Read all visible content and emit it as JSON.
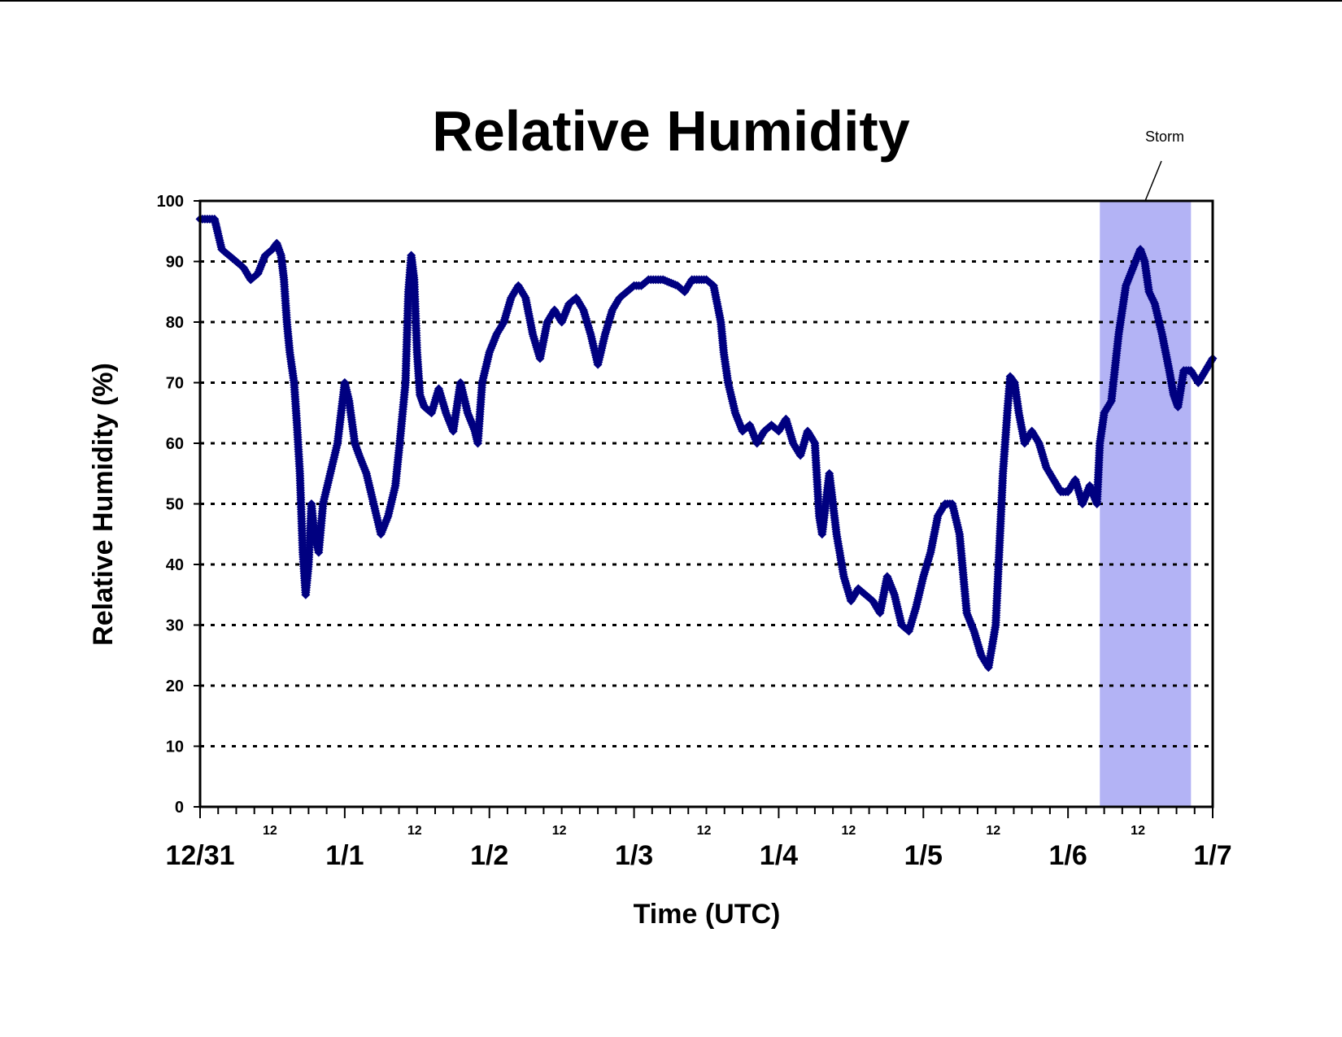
{
  "chart_data": {
    "type": "scatter",
    "title": "Relative Humidity",
    "xlabel": "Time (UTC)",
    "ylabel": "Relative Humidity (%)",
    "ylim": [
      0,
      100
    ],
    "yticks": [
      0,
      10,
      20,
      30,
      40,
      50,
      60,
      70,
      80,
      90,
      100
    ],
    "xlim_days": [
      0,
      7
    ],
    "x_major_ticks": [
      {
        "day": 0,
        "label": "12/31"
      },
      {
        "day": 1,
        "label": "1/1"
      },
      {
        "day": 2,
        "label": "1/2"
      },
      {
        "day": 3,
        "label": "1/3"
      },
      {
        "day": 4,
        "label": "1/4"
      },
      {
        "day": 5,
        "label": "1/5"
      },
      {
        "day": 6,
        "label": "1/6"
      },
      {
        "day": 7,
        "label": "1/7"
      }
    ],
    "x_minor_tick_label": "12",
    "grid": "horizontal-dotted",
    "series_color": "#000080",
    "annotation": {
      "label": "Storm",
      "x_start_day": 6.22,
      "x_end_day": 6.85,
      "color": "#b3b3f5"
    },
    "series": [
      {
        "points": [
          [
            0.0,
            97
          ],
          [
            0.05,
            97
          ],
          [
            0.1,
            97
          ],
          [
            0.12,
            95
          ],
          [
            0.15,
            92
          ],
          [
            0.2,
            91
          ],
          [
            0.25,
            90
          ],
          [
            0.3,
            89
          ],
          [
            0.35,
            87
          ],
          [
            0.4,
            88
          ],
          [
            0.45,
            91
          ],
          [
            0.5,
            92
          ],
          [
            0.53,
            93
          ],
          [
            0.56,
            91
          ],
          [
            0.58,
            87
          ],
          [
            0.6,
            80
          ],
          [
            0.62,
            75
          ],
          [
            0.65,
            70
          ],
          [
            0.67,
            63
          ],
          [
            0.69,
            55
          ],
          [
            0.71,
            42
          ],
          [
            0.73,
            35
          ],
          [
            0.75,
            40
          ],
          [
            0.77,
            50
          ],
          [
            0.79,
            45
          ],
          [
            0.82,
            42
          ],
          [
            0.85,
            50
          ],
          [
            0.9,
            55
          ],
          [
            0.95,
            60
          ],
          [
            1.0,
            70
          ],
          [
            1.03,
            67
          ],
          [
            1.07,
            60
          ],
          [
            1.1,
            58
          ],
          [
            1.15,
            55
          ],
          [
            1.2,
            50
          ],
          [
            1.25,
            45
          ],
          [
            1.3,
            48
          ],
          [
            1.35,
            53
          ],
          [
            1.38,
            60
          ],
          [
            1.42,
            70
          ],
          [
            1.44,
            85
          ],
          [
            1.46,
            91
          ],
          [
            1.48,
            87
          ],
          [
            1.5,
            75
          ],
          [
            1.52,
            68
          ],
          [
            1.55,
            66
          ],
          [
            1.6,
            65
          ],
          [
            1.65,
            69
          ],
          [
            1.7,
            65
          ],
          [
            1.75,
            62
          ],
          [
            1.8,
            70
          ],
          [
            1.85,
            65
          ],
          [
            1.9,
            62
          ],
          [
            1.92,
            60
          ],
          [
            1.95,
            70
          ],
          [
            2.0,
            75
          ],
          [
            2.05,
            78
          ],
          [
            2.1,
            80
          ],
          [
            2.15,
            84
          ],
          [
            2.2,
            86
          ],
          [
            2.25,
            84
          ],
          [
            2.3,
            78
          ],
          [
            2.35,
            74
          ],
          [
            2.4,
            80
          ],
          [
            2.45,
            82
          ],
          [
            2.5,
            80
          ],
          [
            2.55,
            83
          ],
          [
            2.6,
            84
          ],
          [
            2.65,
            82
          ],
          [
            2.7,
            78
          ],
          [
            2.75,
            73
          ],
          [
            2.8,
            78
          ],
          [
            2.85,
            82
          ],
          [
            2.9,
            84
          ],
          [
            2.95,
            85
          ],
          [
            3.0,
            86
          ],
          [
            3.05,
            86
          ],
          [
            3.1,
            87
          ],
          [
            3.2,
            87
          ],
          [
            3.3,
            86
          ],
          [
            3.35,
            85
          ],
          [
            3.4,
            87
          ],
          [
            3.5,
            87
          ],
          [
            3.55,
            86
          ],
          [
            3.6,
            80
          ],
          [
            3.62,
            75
          ],
          [
            3.65,
            70
          ],
          [
            3.7,
            65
          ],
          [
            3.75,
            62
          ],
          [
            3.8,
            63
          ],
          [
            3.85,
            60
          ],
          [
            3.9,
            62
          ],
          [
            3.95,
            63
          ],
          [
            4.0,
            62
          ],
          [
            4.05,
            64
          ],
          [
            4.1,
            60
          ],
          [
            4.15,
            58
          ],
          [
            4.2,
            62
          ],
          [
            4.25,
            60
          ],
          [
            4.28,
            48
          ],
          [
            4.3,
            45
          ],
          [
            4.35,
            55
          ],
          [
            4.4,
            45
          ],
          [
            4.45,
            38
          ],
          [
            4.5,
            34
          ],
          [
            4.55,
            36
          ],
          [
            4.6,
            35
          ],
          [
            4.65,
            34
          ],
          [
            4.7,
            32
          ],
          [
            4.75,
            38
          ],
          [
            4.8,
            35
          ],
          [
            4.85,
            30
          ],
          [
            4.9,
            29
          ],
          [
            4.95,
            33
          ],
          [
            5.0,
            38
          ],
          [
            5.05,
            42
          ],
          [
            5.1,
            48
          ],
          [
            5.15,
            50
          ],
          [
            5.2,
            50
          ],
          [
            5.25,
            45
          ],
          [
            5.3,
            32
          ],
          [
            5.35,
            29
          ],
          [
            5.4,
            25
          ],
          [
            5.45,
            23
          ],
          [
            5.5,
            30
          ],
          [
            5.52,
            40
          ],
          [
            5.55,
            55
          ],
          [
            5.58,
            65
          ],
          [
            5.6,
            71
          ],
          [
            5.63,
            70
          ],
          [
            5.66,
            65
          ],
          [
            5.7,
            60
          ],
          [
            5.75,
            62
          ],
          [
            5.8,
            60
          ],
          [
            5.85,
            56
          ],
          [
            5.9,
            54
          ],
          [
            5.95,
            52
          ],
          [
            6.0,
            52
          ],
          [
            6.05,
            54
          ],
          [
            6.1,
            50
          ],
          [
            6.15,
            53
          ],
          [
            6.2,
            50
          ],
          [
            6.22,
            60
          ],
          [
            6.25,
            65
          ],
          [
            6.3,
            67
          ],
          [
            6.35,
            78
          ],
          [
            6.4,
            86
          ],
          [
            6.45,
            89
          ],
          [
            6.5,
            92
          ],
          [
            6.53,
            90
          ],
          [
            6.56,
            85
          ],
          [
            6.6,
            83
          ],
          [
            6.65,
            78
          ],
          [
            6.7,
            72
          ],
          [
            6.73,
            68
          ],
          [
            6.76,
            66
          ],
          [
            6.8,
            72
          ],
          [
            6.85,
            72
          ],
          [
            6.9,
            70
          ],
          [
            6.95,
            72
          ],
          [
            7.0,
            74
          ],
          [
            7.03,
            72
          ],
          [
            7.06,
            70
          ]
        ]
      }
    ]
  }
}
